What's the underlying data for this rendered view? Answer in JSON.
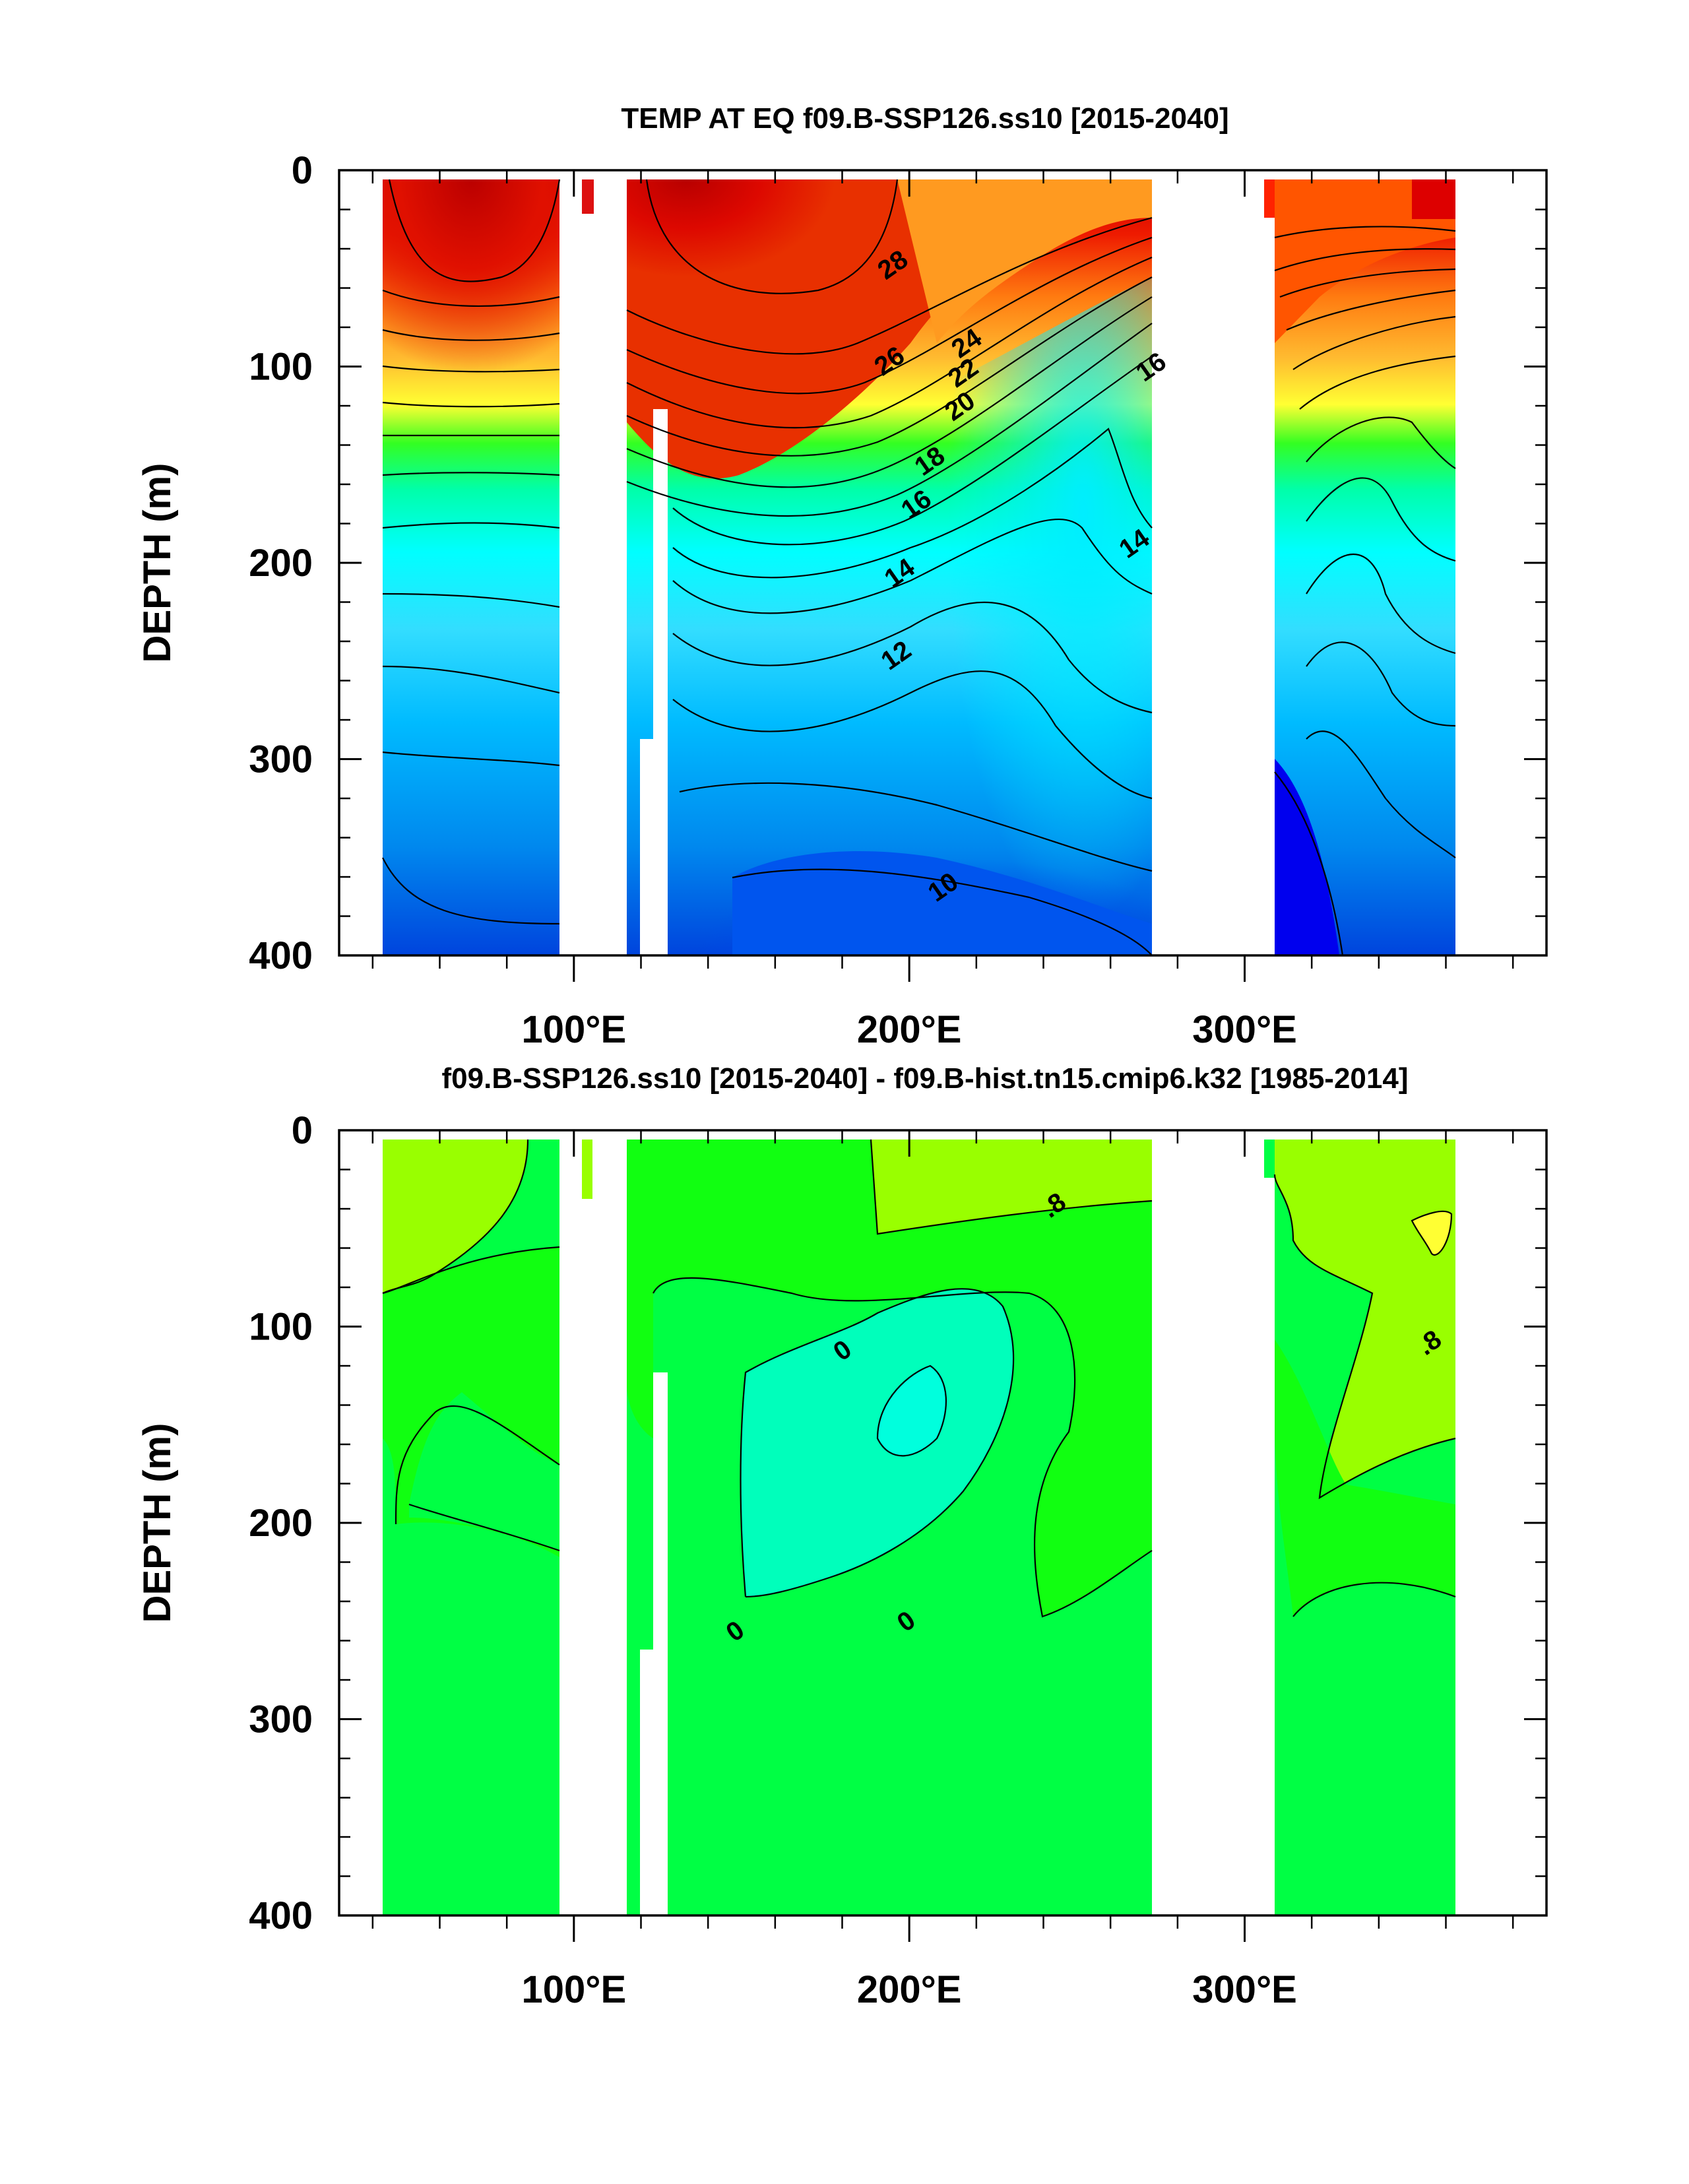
{
  "chart_data": [
    {
      "type": "contour",
      "title": "TEMP AT EQ f09.B-SSP126.ss10 [2015-2040]",
      "xlabel": "",
      "ylabel": "DEPTH (m)",
      "xlim": [
        30,
        390
      ],
      "ylim": [
        0,
        400
      ],
      "y_reversed": true,
      "x_ticks": [
        100,
        200,
        300
      ],
      "x_tick_labels": [
        "100°E",
        "200°E",
        "300°E"
      ],
      "y_ticks": [
        0,
        100,
        200,
        300,
        400
      ],
      "y_tick_labels": [
        "0",
        "100",
        "200",
        "300",
        "400"
      ],
      "colors": {
        "warm": "#c80000",
        "mid": "#ffff33",
        "cold": "#0033ff",
        "land": "#ffffff"
      },
      "contour_interval": 1,
      "ocean_basins_lon": [
        [
          43,
          98
        ],
        [
          117,
          277
        ],
        [
          315,
          369
        ]
      ],
      "contour_labels": [
        {
          "text": "28",
          "lon": 195,
          "depth": 48,
          "value": 28
        },
        {
          "text": "26",
          "lon": 194,
          "depth": 97,
          "value": 26
        },
        {
          "text": "24",
          "lon": 217,
          "depth": 88,
          "value": 24
        },
        {
          "text": "22",
          "lon": 216,
          "depth": 103,
          "value": 22
        },
        {
          "text": "20",
          "lon": 215,
          "depth": 120,
          "value": 20
        },
        {
          "text": "18",
          "lon": 206,
          "depth": 148,
          "value": 18
        },
        {
          "text": "16",
          "lon": 202,
          "depth": 170,
          "value": 16
        },
        {
          "text": "16",
          "lon": 272,
          "depth": 100,
          "value": 16
        },
        {
          "text": "14",
          "lon": 197,
          "depth": 205,
          "value": 14
        },
        {
          "text": "14",
          "lon": 267,
          "depth": 190,
          "value": 14
        },
        {
          "text": "12",
          "lon": 196,
          "depth": 247,
          "value": 12
        },
        {
          "text": "10",
          "lon": 210,
          "depth": 365,
          "value": 10
        }
      ]
    },
    {
      "type": "contour",
      "title": "f09.B-SSP126.ss10 [2015-2040] - f09.B-hist.tn15.cmip6.k32 [1985-2014]",
      "xlabel": "",
      "ylabel": "DEPTH (m)",
      "xlim": [
        30,
        390
      ],
      "ylim": [
        0,
        400
      ],
      "y_reversed": true,
      "x_ticks": [
        100,
        200,
        300
      ],
      "x_tick_labels": [
        "100°E",
        "200°E",
        "300°E"
      ],
      "y_ticks": [
        0,
        100,
        200,
        300,
        400
      ],
      "y_tick_labels": [
        "0",
        "100",
        "200",
        "300",
        "400"
      ],
      "colors": {
        "deep": "#00ff44",
        "high": "#99ff00",
        "mid": "#11ff11",
        "low": "#00ffbb",
        "min": "#00ffdd",
        "peak": "#ffff33"
      },
      "ocean_basins_lon": [
        [
          43,
          98
        ],
        [
          117,
          277
        ],
        [
          315,
          369
        ]
      ],
      "contour_labels": [
        {
          "text": ".8",
          "lon": 243,
          "depth": 38,
          "value": 0.8
        },
        {
          "text": ".8",
          "lon": 355,
          "depth": 108,
          "value": 0.8
        },
        {
          "text": "0",
          "lon": 180,
          "depth": 112,
          "value": 0
        },
        {
          "text": "0",
          "lon": 199,
          "depth": 250,
          "value": 0
        },
        {
          "text": "0",
          "lon": 148,
          "depth": 255,
          "value": 0
        }
      ]
    }
  ]
}
